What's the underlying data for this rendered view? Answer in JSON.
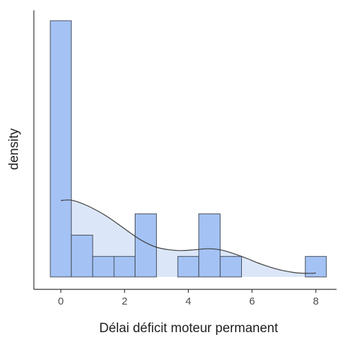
{
  "chart_data": {
    "type": "histogram",
    "title": "",
    "xlabel": "Délai déficit moteur permanent",
    "ylabel": "density",
    "xlim": [
      -0.9,
      8.6
    ],
    "ylim": [
      0,
      1.0
    ],
    "x_ticks": [
      0,
      2,
      4,
      6,
      8
    ],
    "x_tick_labels": [
      "0",
      "2",
      "4",
      "6",
      "8"
    ],
    "y_ticks": [],
    "grid": false,
    "legend": "none",
    "colors": {
      "bar_fill": "#a4c2f4",
      "bar_stroke": "#454d5a",
      "density_fill": "#dbe6f8",
      "density_line": "#3c3c3c",
      "axis": "#333333"
    },
    "bins": [
      {
        "x_start": -0.33,
        "x_end": 0.33,
        "density": 1.0
      },
      {
        "x_start": 0.33,
        "x_end": 1.0,
        "density": 0.163
      },
      {
        "x_start": 1.0,
        "x_end": 1.67,
        "density": 0.08
      },
      {
        "x_start": 1.67,
        "x_end": 2.33,
        "density": 0.08
      },
      {
        "x_start": 2.33,
        "x_end": 3.0,
        "density": 0.246
      },
      {
        "x_start": 3.0,
        "x_end": 3.67,
        "density": 0.0
      },
      {
        "x_start": 3.67,
        "x_end": 4.33,
        "density": 0.08
      },
      {
        "x_start": 4.33,
        "x_end": 5.0,
        "density": 0.246
      },
      {
        "x_start": 5.0,
        "x_end": 5.67,
        "density": 0.08
      },
      {
        "x_start": 5.67,
        "x_end": 6.33,
        "density": 0.0
      },
      {
        "x_start": 6.33,
        "x_end": 7.0,
        "density": 0.0
      },
      {
        "x_start": 7.0,
        "x_end": 7.67,
        "density": 0.0
      },
      {
        "x_start": 7.67,
        "x_end": 8.33,
        "density": 0.08
      }
    ],
    "density_curve": {
      "x": [
        0,
        0.3,
        0.6,
        1.0,
        1.4,
        1.8,
        2.2,
        2.6,
        3.0,
        3.4,
        3.8,
        4.2,
        4.6,
        5.0,
        5.4,
        5.8,
        6.2,
        6.6,
        7.0,
        7.4,
        7.8,
        8.0
      ],
      "y": [
        0.298,
        0.3,
        0.29,
        0.268,
        0.24,
        0.206,
        0.17,
        0.138,
        0.116,
        0.106,
        0.103,
        0.106,
        0.11,
        0.106,
        0.092,
        0.074,
        0.054,
        0.037,
        0.024,
        0.016,
        0.014,
        0.015
      ]
    }
  }
}
